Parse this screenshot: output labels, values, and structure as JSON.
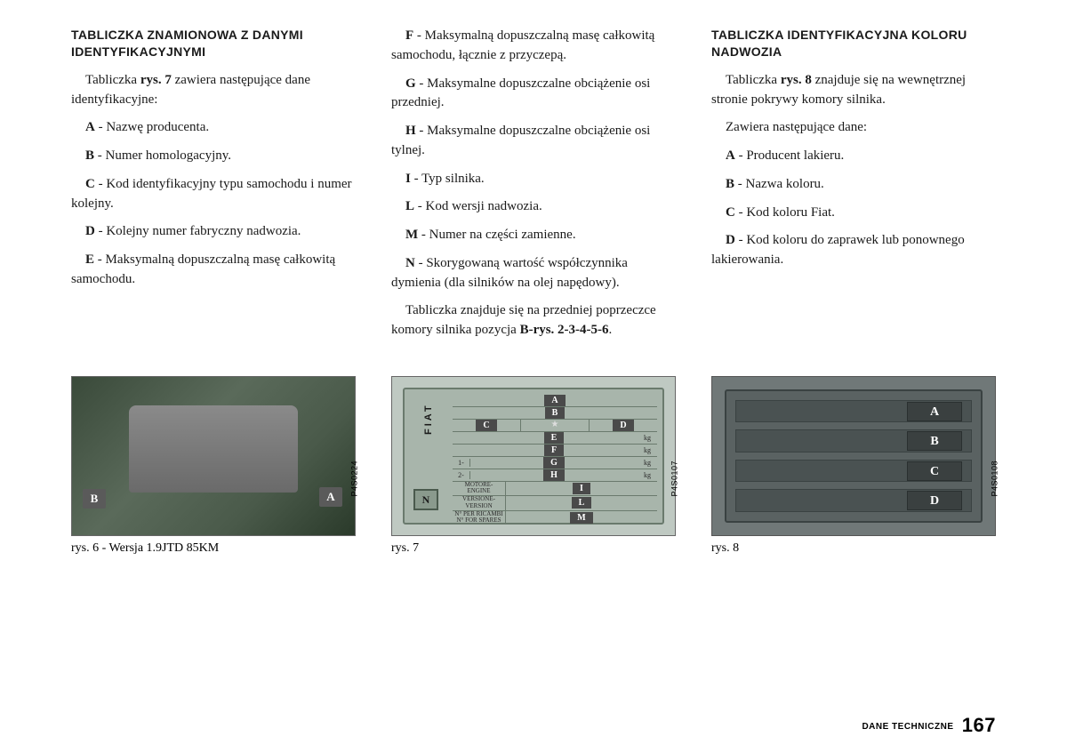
{
  "col1": {
    "heading": "TABLICZKA ZNAMIONOWA Z DANYMI IDENTYFIKACYJNYMI",
    "intro_a": "Tabliczka ",
    "intro_b": "rys. 7",
    "intro_c": " zawiera następujące dane identyfikacyjne:",
    "items": {
      "A": {
        "l": "A",
        "t": " - Nazwę producenta."
      },
      "B": {
        "l": "B",
        "t": " - Numer homologacyjny."
      },
      "C": {
        "l": "C",
        "t": " - Kod identyfikacyjny typu samochodu i numer kolejny."
      },
      "D": {
        "l": "D",
        "t": " - Kolejny numer fabryczny nadwozia."
      },
      "E": {
        "l": "E",
        "t": " - Maksymalną dopuszczalną masę całkowitą samochodu."
      }
    }
  },
  "col2": {
    "items": {
      "F": {
        "l": "F",
        "t": " - Maksymalną dopuszczalną masę całkowitą samochodu, łącznie z przyczepą."
      },
      "G": {
        "l": "G",
        "t": " - Maksymalne dopuszczalne obciążenie osi przedniej."
      },
      "H": {
        "l": "H",
        "t": " - Maksymalne dopuszczalne obciążenie osi tylnej."
      },
      "I": {
        "l": "I",
        "t": " - Typ silnika."
      },
      "L": {
        "l": "L",
        "t": " - Kod wersji nadwozia."
      },
      "M": {
        "l": "M",
        "t": " - Numer na części zamienne."
      },
      "N": {
        "l": "N",
        "t": " - Skorygowaną wartość współczynnika dymienia (dla silników na olej napędowy)."
      }
    },
    "foot_a": "Tabliczka znajduje się na przedniej poprzeczce komory silnika pozycja ",
    "foot_b": "B-rys. 2-3-4-5-6",
    "foot_c": "."
  },
  "col3": {
    "heading": "TABLICZKA IDENTYFIKACYJNA KOLORU NADWOZIA",
    "intro_a": "Tabliczka ",
    "intro_b": "rys. 8",
    "intro_c": " znajduje się na wewnętrznej stronie pokrywy komory silnika.",
    "lead": "Zawiera następujące dane:",
    "items": {
      "A": {
        "l": "A",
        "t": " - Producent lakieru."
      },
      "B": {
        "l": "B",
        "t": " - Nazwa koloru."
      },
      "C": {
        "l": "C",
        "t": " - Kod koloru Fiat."
      },
      "D": {
        "l": "D",
        "t": " - Kod koloru do zaprawek lub ponownego lakierowania."
      }
    }
  },
  "fig6": {
    "caption": "rys. 6 - Wersja 1.9JTD 85KM",
    "code": "P4S0224",
    "markerA": "A",
    "markerB": "B"
  },
  "fig7": {
    "caption": "rys. 7",
    "code": "P4S0107",
    "logo": "FIAT",
    "n": "N",
    "rows": {
      "A": "A",
      "B": "B",
      "C": "C",
      "D": "D",
      "E": "E",
      "F": "F",
      "G": "G",
      "H": "H",
      "I": "I",
      "L": "L",
      "M": "M"
    },
    "kg": "kg",
    "n1": "1-",
    "n2": "2-",
    "lm1": "MOTORE-ENGINE",
    "lm2": "VERSIONE-VERSION",
    "lm3": "N° PER RICAMBI N° FOR SPARES"
  },
  "fig8": {
    "caption": "rys. 8",
    "code": "P4S0108",
    "letters": {
      "A": "A",
      "B": "B",
      "C": "C",
      "D": "D"
    }
  },
  "footer": {
    "section": "DANE TECHNICZNE",
    "page": "167"
  }
}
